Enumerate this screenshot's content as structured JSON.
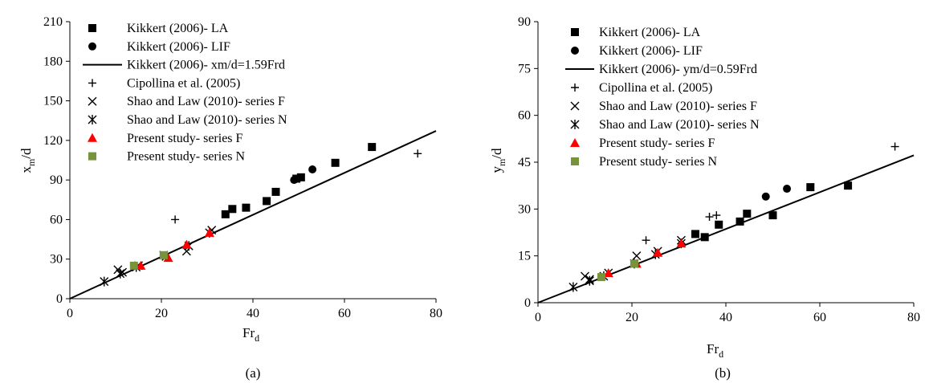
{
  "chart_data": [
    {
      "id": "a",
      "type": "scatter",
      "caption": "(a)",
      "xlabel": "Fr",
      "xlabel_sub": "d",
      "ylabel": "x",
      "ylabel_sub": "m",
      "ylabel_suffix": "/d",
      "xlim": [
        0,
        80
      ],
      "ylim": [
        0,
        210
      ],
      "xticks": [
        0,
        20,
        40,
        60,
        80
      ],
      "yticks": [
        0,
        30,
        60,
        90,
        120,
        150,
        180,
        210
      ],
      "grid": false,
      "legend_position": "top-left",
      "series": [
        {
          "name": "Kikkert (2006)- LA",
          "marker": "square",
          "color": "#000000",
          "points": [
            [
              34,
              64
            ],
            [
              35.5,
              68
            ],
            [
              38.5,
              69
            ],
            [
              43,
              74
            ],
            [
              45,
              81
            ],
            [
              49.5,
              91
            ],
            [
              50.5,
              92
            ],
            [
              58,
              103
            ],
            [
              66,
              115
            ]
          ]
        },
        {
          "name": "Kikkert (2006)- LIF",
          "marker": "circle",
          "color": "#000000",
          "points": [
            [
              49,
              90
            ],
            [
              53,
              98
            ]
          ]
        },
        {
          "name": "Kikkert (2006)- xm/d=1.59Frd",
          "marker": "line",
          "color": "#000000",
          "slope": 1.59,
          "points": []
        },
        {
          "name": "Cipollina et al. (2005)",
          "marker": "plus",
          "color": "#000000",
          "points": [
            [
              23,
              60
            ],
            [
              76,
              110
            ]
          ]
        },
        {
          "name": "Shao and Law (2010)- series F",
          "marker": "x",
          "color": "#000000",
          "points": [
            [
              10.5,
              22
            ],
            [
              11.5,
              20
            ],
            [
              15,
              25
            ],
            [
              20.5,
              33
            ],
            [
              25.5,
              36
            ],
            [
              31,
              52
            ]
          ]
        },
        {
          "name": "Shao and Law (2010)- series N",
          "marker": "asterisk",
          "color": "#000000",
          "points": [
            [
              7.5,
              13
            ],
            [
              11,
              19
            ],
            [
              14.5,
              24
            ],
            [
              21,
              32
            ],
            [
              26,
              40
            ],
            [
              30.5,
              50
            ]
          ]
        },
        {
          "name": "Present study- series F",
          "marker": "triangle",
          "color": "#ff0000",
          "points": [
            [
              15.5,
              25
            ],
            [
              21.5,
              31
            ],
            [
              25.5,
              41
            ],
            [
              30.5,
              50
            ]
          ]
        },
        {
          "name": "Present study- series N",
          "marker": "square",
          "color": "#77933c",
          "points": [
            [
              14,
              25
            ],
            [
              20.5,
              33
            ]
          ]
        }
      ]
    },
    {
      "id": "b",
      "type": "scatter",
      "caption": "(b)",
      "xlabel": "Fr",
      "xlabel_sub": "d",
      "ylabel": "y",
      "ylabel_sub": "m",
      "ylabel_suffix": "/d",
      "xlim": [
        0,
        80
      ],
      "ylim": [
        0,
        90
      ],
      "xticks": [
        0,
        20,
        40,
        60,
        80
      ],
      "yticks": [
        0,
        15,
        30,
        45,
        60,
        75,
        90
      ],
      "grid": false,
      "legend_position": "top-left",
      "series": [
        {
          "name": "Kikkert (2006)- LA",
          "marker": "square",
          "color": "#000000",
          "points": [
            [
              33.5,
              22
            ],
            [
              35.5,
              21
            ],
            [
              38.5,
              25
            ],
            [
              43,
              26
            ],
            [
              44.5,
              28.5
            ],
            [
              50,
              28
            ],
            [
              58,
              37
            ],
            [
              66,
              37.5
            ]
          ]
        },
        {
          "name": "Kikkert (2006)- LIF",
          "marker": "circle",
          "color": "#000000",
          "points": [
            [
              48.5,
              34
            ],
            [
              53,
              36.5
            ]
          ]
        },
        {
          "name": "Kikkert (2006)- ym/d=0.59Frd",
          "marker": "line",
          "color": "#000000",
          "slope": 0.59,
          "points": []
        },
        {
          "name": "Cipollina et al. (2005)",
          "marker": "plus",
          "color": "#000000",
          "points": [
            [
              23,
              20
            ],
            [
              36.5,
              27.5
            ],
            [
              38,
              28
            ],
            [
              76,
              50
            ]
          ]
        },
        {
          "name": "Shao and Law (2010)- series F",
          "marker": "x",
          "color": "#000000",
          "points": [
            [
              10,
              8.5
            ],
            [
              11,
              7.5
            ],
            [
              15,
              9.5
            ],
            [
              21,
              15
            ],
            [
              25.5,
              16.5
            ],
            [
              30.5,
              20
            ]
          ]
        },
        {
          "name": "Shao and Law (2010)- series N",
          "marker": "asterisk",
          "color": "#000000",
          "points": [
            [
              7.5,
              5
            ],
            [
              11,
              7
            ],
            [
              14,
              8.5
            ],
            [
              20.5,
              12.5
            ],
            [
              25,
              15.5
            ],
            [
              30.5,
              19
            ]
          ]
        },
        {
          "name": "Present study- series F",
          "marker": "triangle",
          "color": "#ff0000",
          "points": [
            [
              15,
              9.5
            ],
            [
              21,
              12.5
            ],
            [
              25.5,
              16
            ],
            [
              30.5,
              19
            ]
          ]
        },
        {
          "name": "Present study- series N",
          "marker": "square",
          "color": "#77933c",
          "points": [
            [
              13.5,
              8.2
            ],
            [
              20.5,
              12.5
            ]
          ]
        }
      ]
    }
  ]
}
